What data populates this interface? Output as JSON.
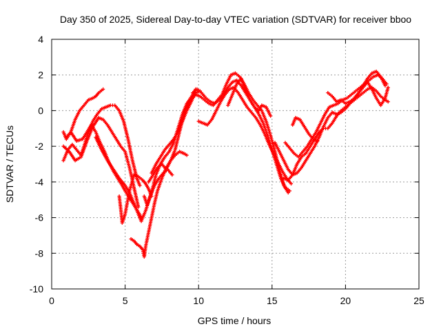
{
  "chart_data": {
    "type": "scatter",
    "title": "Day 350 of 2025, Sidereal Day-to-day VTEC variation (SDTVAR) for receiver bboo",
    "xlabel": "GPS time / hours",
    "ylabel": "SDTVAR / TECUs",
    "xlim": [
      0,
      25
    ],
    "ylim": [
      -10,
      4
    ],
    "xticks": [
      0,
      5,
      10,
      15,
      20,
      25
    ],
    "yticks": [
      -10,
      -8,
      -6,
      -4,
      -2,
      0,
      2,
      4
    ],
    "grid": true,
    "marker": "plus",
    "color": "#ff0000",
    "series": [
      {
        "x": [
          0.8,
          1.0,
          1.3,
          1.6,
          1.9,
          2.2,
          2.5,
          2.8,
          3.0,
          3.2,
          3.5
        ],
        "y": [
          -1.2,
          -1.6,
          -1.2,
          -0.5,
          0.0,
          0.3,
          0.6,
          0.7,
          0.8,
          1.0,
          1.2
        ]
      },
      {
        "x": [
          0.8,
          1.1,
          1.4,
          1.7,
          2.0,
          2.2,
          2.5,
          2.8,
          3.1,
          3.4,
          3.7,
          4.0,
          4.3,
          4.6,
          4.9,
          5.2,
          5.5,
          5.8,
          6.0
        ],
        "y": [
          -2.8,
          -2.2,
          -1.9,
          -2.2,
          -2.5,
          -2.0,
          -1.2,
          -0.6,
          -0.2,
          0.1,
          0.2,
          0.3,
          0.3,
          0.0,
          -0.6,
          -1.6,
          -2.8,
          -3.8,
          -4.2
        ]
      },
      {
        "x": [
          0.8,
          1.2,
          1.6,
          2.0,
          2.4,
          2.8,
          3.2,
          3.5,
          3.8,
          4.1,
          4.4,
          4.7,
          5.0,
          5.3,
          5.6,
          5.9
        ],
        "y": [
          -2.0,
          -2.3,
          -2.8,
          -2.6,
          -1.7,
          -0.9,
          -0.4,
          -0.5,
          -0.8,
          -1.2,
          -1.6,
          -2.0,
          -2.3,
          -3.2,
          -4.3,
          -5.4
        ]
      },
      {
        "x": [
          1.0,
          1.3,
          1.7,
          2.1,
          2.4,
          2.7,
          3.0,
          3.3,
          3.6,
          3.9,
          4.2,
          4.5,
          4.8,
          5.0,
          5.3,
          5.6,
          5.9,
          6.1
        ],
        "y": [
          -1.5,
          -1.2,
          -1.7,
          -1.6,
          -1.2,
          -0.8,
          -1.2,
          -1.8,
          -2.3,
          -2.9,
          -3.4,
          -3.8,
          -4.2,
          -4.5,
          -4.9,
          -5.3,
          -5.7,
          -6.0
        ]
      },
      {
        "x": [
          3.0,
          3.4,
          3.8,
          4.2,
          4.6,
          5.0,
          5.3,
          5.6,
          5.9,
          6.1,
          6.4,
          6.7,
          7.0,
          7.3,
          7.6,
          7.9,
          8.2
        ],
        "y": [
          -1.5,
          -2.2,
          -2.8,
          -3.3,
          -3.8,
          -4.2,
          -4.6,
          -5.2,
          -5.8,
          -6.2,
          -5.6,
          -4.8,
          -4.2,
          -3.8,
          -3.5,
          -3.3,
          -3.6
        ]
      },
      {
        "x": [
          4.6,
          4.7,
          4.8,
          5.0,
          5.3,
          5.6,
          5.9,
          6.2,
          6.4,
          6.6,
          6.8
        ],
        "y": [
          -4.8,
          -5.5,
          -6.3,
          -5.8,
          -4.5,
          -3.6,
          -3.7,
          -3.9,
          -4.1,
          -4.4,
          -4.8
        ]
      },
      {
        "x": [
          5.4,
          5.6,
          5.8,
          6.0,
          6.2,
          6.3,
          6.4,
          6.6,
          6.8,
          7.0,
          7.2,
          7.5,
          7.8,
          8.1,
          8.4,
          8.7,
          9.0,
          9.2
        ],
        "y": [
          -7.2,
          -7.3,
          -7.5,
          -7.6,
          -7.8,
          -8.2,
          -7.6,
          -6.8,
          -6.0,
          -5.2,
          -4.5,
          -3.8,
          -3.2,
          -2.8,
          -2.5,
          -2.3,
          -2.4,
          -2.5
        ]
      },
      {
        "x": [
          6.3,
          6.5,
          6.8,
          7.1,
          7.4,
          7.7,
          8.0,
          8.3,
          8.6,
          8.9,
          9.2,
          9.5,
          9.8,
          10.1
        ],
        "y": [
          -4.8,
          -5.3,
          -4.6,
          -3.6,
          -3.0,
          -2.6,
          -2.3,
          -1.8,
          -1.0,
          -0.2,
          0.4,
          0.7,
          1.0,
          1.1
        ]
      },
      {
        "x": [
          6.6,
          6.9,
          7.2,
          7.5,
          7.8,
          8.1,
          8.4,
          8.7,
          9.0,
          9.3,
          9.6,
          9.8
        ],
        "y": [
          -4.0,
          -3.6,
          -3.2,
          -3.0,
          -3.3,
          -2.8,
          -2.2,
          -1.2,
          -0.2,
          0.5,
          0.9,
          1.2
        ]
      },
      {
        "x": [
          6.8,
          7.1,
          7.4,
          7.7,
          8.0,
          8.3,
          8.6,
          8.9,
          9.2,
          9.5,
          9.7
        ],
        "y": [
          -3.5,
          -3.0,
          -2.6,
          -2.2,
          -1.9,
          -1.6,
          -1.2,
          -0.6,
          0.0,
          0.5,
          0.9
        ]
      },
      {
        "x": [
          9.2,
          9.5,
          9.8,
          10.1,
          10.4,
          10.7,
          11.0,
          11.3,
          11.6,
          11.9,
          12.2,
          12.5,
          12.8,
          13.1,
          13.4,
          13.7,
          14.0,
          14.3,
          14.6,
          14.9,
          15.2,
          15.5,
          15.8,
          16.1
        ],
        "y": [
          0.2,
          0.6,
          0.9,
          0.8,
          0.6,
          0.4,
          0.3,
          0.6,
          0.9,
          1.5,
          2.0,
          2.1,
          1.9,
          1.5,
          1.0,
          0.6,
          0.3,
          0.0,
          -0.6,
          -1.4,
          -2.3,
          -3.3,
          -4.2,
          -4.6
        ]
      },
      {
        "x": [
          9.6,
          9.9,
          10.2,
          10.5,
          10.8,
          11.1,
          11.4,
          11.7,
          12.0,
          12.3,
          12.6,
          12.9,
          13.2,
          13.5,
          13.8,
          14.1,
          14.4,
          14.7,
          15.0,
          15.3,
          15.6,
          15.9,
          16.2
        ],
        "y": [
          1.0,
          1.2,
          1.0,
          0.7,
          0.5,
          0.4,
          0.6,
          0.9,
          1.3,
          1.6,
          1.7,
          1.4,
          1.0,
          0.6,
          0.2,
          -0.2,
          -0.7,
          -1.4,
          -2.2,
          -3.0,
          -3.8,
          -4.3,
          -4.5
        ]
      },
      {
        "x": [
          10.0,
          10.3,
          10.6,
          10.9,
          11.2,
          11.5,
          11.8,
          12.1,
          12.4,
          12.7,
          13.0,
          13.3,
          13.6,
          13.9,
          14.2,
          14.5,
          14.8,
          15.1,
          15.4,
          15.7,
          16.0,
          16.3
        ],
        "y": [
          -0.6,
          -0.7,
          -0.8,
          -0.5,
          0.0,
          0.5,
          0.9,
          1.2,
          1.3,
          1.0,
          0.6,
          0.2,
          -0.1,
          -0.4,
          -0.8,
          -1.3,
          -1.9,
          -2.4,
          -2.9,
          -3.4,
          -3.8,
          -4.1
        ]
      },
      {
        "x": [
          12.0,
          12.3,
          12.6,
          12.9,
          13.2,
          13.5,
          13.8,
          14.1,
          14.3,
          14.6,
          14.9
        ],
        "y": [
          0.3,
          0.9,
          1.5,
          1.8,
          1.2,
          0.6,
          0.2,
          0.0,
          0.3,
          0.2,
          -0.3
        ]
      },
      {
        "x": [
          15.2,
          15.5,
          15.8,
          16.1,
          16.4,
          16.7,
          17.0,
          17.3,
          17.6,
          17.9,
          18.2,
          18.5,
          18.8,
          19.1,
          19.4,
          19.7,
          20.0,
          20.3,
          20.6,
          20.9,
          21.2,
          21.5,
          21.8,
          22.1,
          22.4,
          22.7
        ],
        "y": [
          -1.8,
          -2.3,
          -2.8,
          -3.3,
          -3.6,
          -3.5,
          -3.2,
          -2.8,
          -2.4,
          -2.0,
          -1.5,
          -0.9,
          -0.4,
          -0.1,
          -0.2,
          -0.1,
          0.1,
          0.4,
          0.7,
          1.0,
          1.4,
          1.8,
          2.1,
          2.2,
          1.9,
          1.4
        ]
      },
      {
        "x": [
          15.8,
          16.1,
          16.4,
          16.7,
          17.0,
          17.3,
          17.6,
          17.9,
          18.2,
          18.5,
          18.8,
          19.1,
          19.4,
          19.7,
          20.0,
          20.3,
          20.6,
          20.9,
          21.2,
          21.5,
          21.8,
          22.1,
          22.4,
          22.7,
          22.9
        ],
        "y": [
          -3.8,
          -3.9,
          -3.6,
          -3.0,
          -2.6,
          -2.4,
          -2.0,
          -1.6,
          -1.2,
          -1.0,
          -1.0,
          -0.7,
          -0.3,
          0.0,
          0.2,
          0.4,
          0.6,
          0.8,
          1.0,
          1.2,
          1.3,
          1.1,
          0.8,
          0.6,
          0.5
        ]
      },
      {
        "x": [
          15.9,
          16.2,
          16.5,
          16.8,
          17.1,
          17.4,
          17.7,
          18.0,
          18.3,
          18.6,
          18.9,
          19.2,
          19.5,
          19.8,
          20.1,
          20.4,
          20.7,
          21.0,
          21.3,
          21.6,
          21.9,
          22.2,
          22.5,
          22.8
        ],
        "y": [
          -1.8,
          -2.1,
          -2.4,
          -2.6,
          -2.3,
          -2.0,
          -1.6,
          -1.2,
          -0.7,
          -0.2,
          0.2,
          0.3,
          0.4,
          0.6,
          0.7,
          0.9,
          1.1,
          1.3,
          1.5,
          1.7,
          1.9,
          2.0,
          1.8,
          1.5
        ]
      },
      {
        "x": [
          16.4,
          16.6,
          16.9,
          17.2,
          17.5,
          17.8,
          18.1
        ],
        "y": [
          -0.8,
          -0.4,
          -0.5,
          -0.9,
          -1.3,
          -1.6,
          -1.7
        ]
      },
      {
        "x": [
          18.8,
          19.1,
          19.4,
          19.7,
          20.0,
          20.3,
          20.6,
          20.9,
          21.2,
          21.5,
          21.8,
          22.1,
          22.4,
          22.7,
          22.9
        ],
        "y": [
          1.0,
          0.8,
          0.5,
          0.6,
          0.4,
          0.5,
          0.7,
          1.0,
          1.3,
          1.6,
          1.2,
          0.7,
          0.3,
          0.7,
          1.3
        ]
      }
    ]
  }
}
